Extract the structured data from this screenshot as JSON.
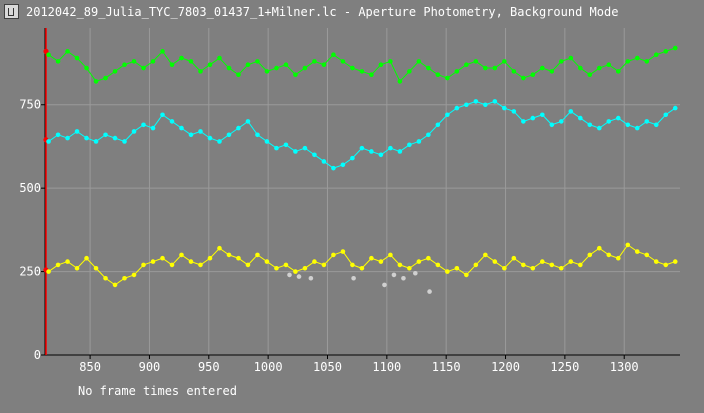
{
  "window": {
    "title": "2012042_89_Julia_TYC_7803_01437_1+Milner.lc - Aperture Photometry, Background Mode",
    "status": "No frame times entered"
  },
  "colors": {
    "background": "#7f7f7f",
    "grid": "#9a9a9a",
    "axis": "#000000",
    "green": "#00ff00",
    "cyan": "#00ffff",
    "yellow": "#ffff00",
    "gray": "#d0d0d0",
    "marker": "#ff0000"
  },
  "chart_data": {
    "type": "scatter",
    "title": "",
    "xlabel": "",
    "ylabel": "",
    "xlim": [
      812,
      1347
    ],
    "ylim": [
      0,
      980
    ],
    "x_ticks": [
      850,
      900,
      950,
      1000,
      1050,
      1100,
      1150,
      1200,
      1250,
      1300
    ],
    "y_ticks": [
      250,
      500,
      750
    ],
    "grid": true,
    "series": [
      {
        "color": "green",
        "x": [
          815,
          823,
          831,
          839,
          847,
          855,
          863,
          871,
          879,
          887,
          895,
          903,
          911,
          919,
          927,
          935,
          943,
          951,
          959,
          967,
          975,
          983,
          991,
          999,
          1007,
          1015,
          1023,
          1031,
          1039,
          1047,
          1055,
          1063,
          1071,
          1079,
          1087,
          1095,
          1103,
          1111,
          1119,
          1127,
          1135,
          1143,
          1151,
          1159,
          1167,
          1175,
          1183,
          1191,
          1199,
          1207,
          1215,
          1223,
          1231,
          1239,
          1247,
          1255,
          1263,
          1271,
          1279,
          1287,
          1295,
          1303,
          1311,
          1319,
          1327,
          1335,
          1343
        ],
        "y": [
          900,
          880,
          910,
          890,
          860,
          820,
          830,
          850,
          870,
          880,
          860,
          880,
          910,
          870,
          890,
          880,
          850,
          870,
          890,
          860,
          840,
          870,
          880,
          850,
          860,
          870,
          840,
          860,
          880,
          870,
          900,
          880,
          860,
          850,
          840,
          870,
          880,
          820,
          850,
          880,
          860,
          840,
          830,
          850,
          870,
          880,
          860,
          860,
          880,
          850,
          830,
          840,
          860,
          850,
          880,
          890,
          860,
          840,
          860,
          870,
          850,
          880,
          890,
          880,
          900,
          910,
          920
        ]
      },
      {
        "color": "cyan",
        "x": [
          815,
          823,
          831,
          839,
          847,
          855,
          863,
          871,
          879,
          887,
          895,
          903,
          911,
          919,
          927,
          935,
          943,
          951,
          959,
          967,
          975,
          983,
          991,
          999,
          1007,
          1015,
          1023,
          1031,
          1039,
          1047,
          1055,
          1063,
          1071,
          1079,
          1087,
          1095,
          1103,
          1111,
          1119,
          1127,
          1135,
          1143,
          1151,
          1159,
          1167,
          1175,
          1183,
          1191,
          1199,
          1207,
          1215,
          1223,
          1231,
          1239,
          1247,
          1255,
          1263,
          1271,
          1279,
          1287,
          1295,
          1303,
          1311,
          1319,
          1327,
          1335,
          1343
        ],
        "y": [
          640,
          660,
          650,
          670,
          650,
          640,
          660,
          650,
          640,
          670,
          690,
          680,
          720,
          700,
          680,
          660,
          670,
          650,
          640,
          660,
          680,
          700,
          660,
          640,
          620,
          630,
          610,
          620,
          600,
          580,
          560,
          570,
          590,
          620,
          610,
          600,
          620,
          610,
          630,
          640,
          660,
          690,
          720,
          740,
          750,
          760,
          750,
          760,
          740,
          730,
          700,
          710,
          720,
          690,
          700,
          730,
          710,
          690,
          680,
          700,
          710,
          690,
          680,
          700,
          690,
          720,
          740
        ]
      },
      {
        "color": "yellow",
        "x": [
          815,
          823,
          831,
          839,
          847,
          855,
          863,
          871,
          879,
          887,
          895,
          903,
          911,
          919,
          927,
          935,
          943,
          951,
          959,
          967,
          975,
          983,
          991,
          999,
          1007,
          1015,
          1023,
          1031,
          1039,
          1047,
          1055,
          1063,
          1071,
          1079,
          1087,
          1095,
          1103,
          1111,
          1119,
          1127,
          1135,
          1143,
          1151,
          1159,
          1167,
          1175,
          1183,
          1191,
          1199,
          1207,
          1215,
          1223,
          1231,
          1239,
          1247,
          1255,
          1263,
          1271,
          1279,
          1287,
          1295,
          1303,
          1311,
          1319,
          1327,
          1335,
          1343
        ],
        "y": [
          250,
          270,
          280,
          260,
          290,
          260,
          230,
          210,
          230,
          240,
          270,
          280,
          290,
          270,
          300,
          280,
          270,
          290,
          320,
          300,
          290,
          270,
          300,
          280,
          260,
          270,
          250,
          260,
          280,
          270,
          300,
          310,
          270,
          260,
          290,
          280,
          300,
          270,
          260,
          280,
          290,
          270,
          250,
          260,
          240,
          270,
          300,
          280,
          260,
          290,
          270,
          260,
          280,
          270,
          260,
          280,
          270,
          300,
          320,
          300,
          290,
          330,
          310,
          300,
          280,
          270,
          280
        ]
      },
      {
        "color": "gray",
        "x": [
          1018,
          1026,
          1036,
          1072,
          1098,
          1106,
          1114,
          1124,
          1136
        ],
        "y": [
          240,
          235,
          230,
          230,
          210,
          240,
          230,
          245,
          190
        ]
      }
    ],
    "markers": [
      {
        "y": 910
      },
      {
        "y": 645
      },
      {
        "y": 255
      }
    ]
  }
}
